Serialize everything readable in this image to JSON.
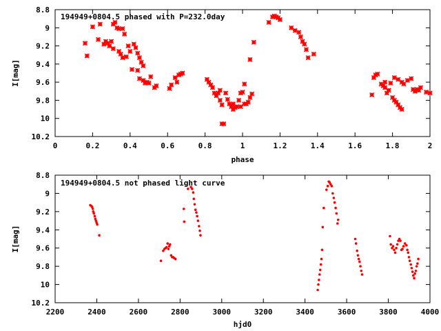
{
  "chart_data": [
    {
      "type": "scatter",
      "title": "194949+0804.5 phased with P=232.0day",
      "xlabel": "phase",
      "ylabel": "I[mag]",
      "xlim": [
        0,
        2
      ],
      "ylim": [
        8.8,
        10.2
      ],
      "y_inverted": true,
      "xticks": [
        0,
        0.2,
        0.4,
        0.6,
        0.8,
        1,
        1.2,
        1.4,
        1.6,
        1.8,
        2
      ],
      "xtick_labels": [
        "0",
        "0.2",
        "0.4",
        "0.6",
        "0.8",
        "1",
        "1.2",
        "1.4",
        "1.6",
        "1.8",
        "2"
      ],
      "yticks": [
        8.8,
        9,
        9.2,
        9.4,
        9.6,
        9.8,
        10,
        10.2
      ],
      "ytick_labels": [
        "8.8",
        "9",
        "9.2",
        "9.4",
        "9.6",
        "9.8",
        "10",
        "10.2"
      ],
      "grid": false,
      "marker_color": "#ff0000",
      "marker": "asterisk",
      "points": [
        [
          0.16,
          9.17
        ],
        [
          0.17,
          9.31
        ],
        [
          0.2,
          8.99
        ],
        [
          0.23,
          9.13
        ],
        [
          0.24,
          8.96
        ],
        [
          0.26,
          9.18
        ],
        [
          0.27,
          9.15
        ],
        [
          0.28,
          9.17
        ],
        [
          0.29,
          9.2
        ],
        [
          0.3,
          9.15
        ],
        [
          0.31,
          8.96
        ],
        [
          0.31,
          9.23
        ],
        [
          0.32,
          8.94
        ],
        [
          0.33,
          9.0
        ],
        [
          0.34,
          9.01
        ],
        [
          0.34,
          9.26
        ],
        [
          0.35,
          9.29
        ],
        [
          0.36,
          9.01
        ],
        [
          0.36,
          9.33
        ],
        [
          0.37,
          9.07
        ],
        [
          0.38,
          9.32
        ],
        [
          0.39,
          9.2
        ],
        [
          0.4,
          9.26
        ],
        [
          0.41,
          9.46
        ],
        [
          0.42,
          9.18
        ],
        [
          0.43,
          9.22
        ],
        [
          0.44,
          9.28
        ],
        [
          0.44,
          9.47
        ],
        [
          0.45,
          9.33
        ],
        [
          0.45,
          9.56
        ],
        [
          0.46,
          9.38
        ],
        [
          0.47,
          9.42
        ],
        [
          0.47,
          9.58
        ],
        [
          0.48,
          9.61
        ],
        [
          0.49,
          9.6
        ],
        [
          0.5,
          9.61
        ],
        [
          0.51,
          9.54
        ],
        [
          0.53,
          9.66
        ],
        [
          0.54,
          9.64
        ],
        [
          0.61,
          9.67
        ],
        [
          0.62,
          9.63
        ],
        [
          0.64,
          9.55
        ],
        [
          0.65,
          9.6
        ],
        [
          0.66,
          9.52
        ],
        [
          0.67,
          9.51
        ],
        [
          0.68,
          9.5
        ],
        [
          0.81,
          9.57
        ],
        [
          0.82,
          9.6
        ],
        [
          0.83,
          9.63
        ],
        [
          0.84,
          9.66
        ],
        [
          0.85,
          9.72
        ],
        [
          0.86,
          9.75
        ],
        [
          0.87,
          9.72
        ],
        [
          0.88,
          9.69
        ],
        [
          0.88,
          9.8
        ],
        [
          0.89,
          9.85
        ],
        [
          0.89,
          10.06
        ],
        [
          0.9,
          10.06
        ],
        [
          0.91,
          9.72
        ],
        [
          0.92,
          9.79
        ],
        [
          0.93,
          9.84
        ],
        [
          0.94,
          9.87
        ],
        [
          0.95,
          9.9
        ],
        [
          0.95,
          9.84
        ],
        [
          0.96,
          9.88
        ],
        [
          0.97,
          9.87
        ],
        [
          0.98,
          9.8
        ],
        [
          0.99,
          9.72
        ],
        [
          0.99,
          9.87
        ],
        [
          1.0,
          9.71
        ],
        [
          1.01,
          9.84
        ],
        [
          1.01,
          9.62
        ],
        [
          1.02,
          9.84
        ],
        [
          1.03,
          9.82
        ],
        [
          1.04,
          9.35
        ],
        [
          1.04,
          9.77
        ],
        [
          1.05,
          9.73
        ],
        [
          1.06,
          9.16
        ],
        [
          1.14,
          8.94
        ],
        [
          1.16,
          8.88
        ],
        [
          1.17,
          8.87
        ],
        [
          1.18,
          8.88
        ],
        [
          1.19,
          8.89
        ],
        [
          1.2,
          8.91
        ],
        [
          1.26,
          9.0
        ],
        [
          1.28,
          9.03
        ],
        [
          1.3,
          9.05
        ],
        [
          1.31,
          9.1
        ],
        [
          1.32,
          9.15
        ],
        [
          1.33,
          9.18
        ],
        [
          1.34,
          9.24
        ],
        [
          1.35,
          9.33
        ],
        [
          1.38,
          9.29
        ],
        [
          1.69,
          9.74
        ],
        [
          1.7,
          9.55
        ],
        [
          1.71,
          9.52
        ],
        [
          1.72,
          9.51
        ],
        [
          1.74,
          9.62
        ],
        [
          1.75,
          9.64
        ],
        [
          1.76,
          9.66
        ],
        [
          1.76,
          9.6
        ],
        [
          1.77,
          9.72
        ],
        [
          1.78,
          9.69
        ],
        [
          1.79,
          9.61
        ],
        [
          1.8,
          9.77
        ],
        [
          1.81,
          9.55
        ],
        [
          1.81,
          9.8
        ],
        [
          1.82,
          9.82
        ],
        [
          1.83,
          9.85
        ],
        [
          1.83,
          9.57
        ],
        [
          1.84,
          9.88
        ],
        [
          1.85,
          9.9
        ],
        [
          1.85,
          9.6
        ],
        [
          1.86,
          9.62
        ],
        [
          1.88,
          9.58
        ],
        [
          1.9,
          9.56
        ],
        [
          1.91,
          9.68
        ],
        [
          1.92,
          9.7
        ],
        [
          1.93,
          9.68
        ],
        [
          1.94,
          9.69
        ],
        [
          1.95,
          9.66
        ],
        [
          1.98,
          9.71
        ],
        [
          2.0,
          9.72
        ]
      ]
    },
    {
      "type": "scatter",
      "title": "194949+0804.5 not phased light curve",
      "xlabel": "hjd0",
      "ylabel": "I[mag]",
      "xlim": [
        2200,
        4000
      ],
      "ylim": [
        8.8,
        10.2
      ],
      "y_inverted": true,
      "xticks": [
        2200,
        2400,
        2600,
        2800,
        3000,
        3200,
        3400,
        3600,
        3800,
        4000
      ],
      "xtick_labels": [
        "2200",
        "2400",
        "2600",
        "2800",
        "3000",
        "3200",
        "3400",
        "3600",
        "3800",
        "4000"
      ],
      "yticks": [
        8.8,
        9,
        9.2,
        9.4,
        9.6,
        9.8,
        10,
        10.2
      ],
      "ytick_labels": [
        "8.8",
        "9",
        "9.2",
        "9.4",
        "9.6",
        "9.8",
        "10",
        "10.2"
      ],
      "grid": false,
      "marker_color": "#ff0000",
      "marker": "dot",
      "points": [
        [
          2369,
          9.13
        ],
        [
          2375,
          9.14
        ],
        [
          2378,
          9.15
        ],
        [
          2381,
          9.17
        ],
        [
          2383,
          9.2
        ],
        [
          2386,
          9.22
        ],
        [
          2390,
          9.25
        ],
        [
          2393,
          9.28
        ],
        [
          2396,
          9.3
        ],
        [
          2399,
          9.32
        ],
        [
          2402,
          9.34
        ],
        [
          2412,
          9.46
        ],
        [
          2708,
          9.74
        ],
        [
          2719,
          9.63
        ],
        [
          2725,
          9.61
        ],
        [
          2731,
          9.6
        ],
        [
          2735,
          9.59
        ],
        [
          2740,
          9.55
        ],
        [
          2744,
          9.61
        ],
        [
          2748,
          9.58
        ],
        [
          2752,
          9.56
        ],
        [
          2757,
          9.68
        ],
        [
          2762,
          9.7
        ],
        [
          2767,
          9.7
        ],
        [
          2772,
          9.71
        ],
        [
          2778,
          9.72
        ],
        [
          2818,
          9.17
        ],
        [
          2820,
          9.31
        ],
        [
          2838,
          8.95
        ],
        [
          2852,
          8.93
        ],
        [
          2858,
          8.95
        ],
        [
          2863,
          8.99
        ],
        [
          2866,
          9.06
        ],
        [
          2870,
          9.12
        ],
        [
          2874,
          9.18
        ],
        [
          2878,
          9.21
        ],
        [
          2882,
          9.25
        ],
        [
          2886,
          9.3
        ],
        [
          2891,
          9.36
        ],
        [
          2895,
          9.41
        ],
        [
          2898,
          9.46
        ],
        [
          3461,
          10.06
        ],
        [
          3464,
          10.0
        ],
        [
          3467,
          9.95
        ],
        [
          3470,
          9.89
        ],
        [
          3473,
          9.84
        ],
        [
          3476,
          9.78
        ],
        [
          3479,
          9.72
        ],
        [
          3482,
          9.62
        ],
        [
          3485,
          9.37
        ],
        [
          3490,
          9.16
        ],
        [
          3503,
          8.96
        ],
        [
          3509,
          8.92
        ],
        [
          3514,
          8.87
        ],
        [
          3518,
          8.88
        ],
        [
          3523,
          8.9
        ],
        [
          3528,
          8.92
        ],
        [
          3533,
          9.0
        ],
        [
          3538,
          9.05
        ],
        [
          3542,
          9.1
        ],
        [
          3547,
          9.16
        ],
        [
          3551,
          9.22
        ],
        [
          3556,
          9.33
        ],
        [
          3559,
          9.29
        ],
        [
          3641,
          9.5
        ],
        [
          3645,
          9.55
        ],
        [
          3650,
          9.63
        ],
        [
          3654,
          9.68
        ],
        [
          3658,
          9.72
        ],
        [
          3662,
          9.75
        ],
        [
          3666,
          9.8
        ],
        [
          3670,
          9.85
        ],
        [
          3674,
          9.89
        ],
        [
          3808,
          9.47
        ],
        [
          3812,
          9.56
        ],
        [
          3818,
          9.6
        ],
        [
          3823,
          9.58
        ],
        [
          3828,
          9.62
        ],
        [
          3833,
          9.65
        ],
        [
          3838,
          9.6
        ],
        [
          3843,
          9.56
        ],
        [
          3848,
          9.52
        ],
        [
          3853,
          9.5
        ],
        [
          3858,
          9.52
        ],
        [
          3863,
          9.62
        ],
        [
          3868,
          9.61
        ],
        [
          3873,
          9.58
        ],
        [
          3880,
          9.55
        ],
        [
          3887,
          9.57
        ],
        [
          3891,
          9.62
        ],
        [
          3895,
          9.65
        ],
        [
          3899,
          9.7
        ],
        [
          3903,
          9.74
        ],
        [
          3908,
          9.78
        ],
        [
          3912,
          9.82
        ],
        [
          3916,
          9.86
        ],
        [
          3920,
          9.9
        ],
        [
          3924,
          9.93
        ],
        [
          3928,
          9.88
        ],
        [
          3932,
          9.85
        ],
        [
          3936,
          9.8
        ],
        [
          3940,
          9.77
        ],
        [
          3944,
          9.72
        ]
      ]
    }
  ]
}
